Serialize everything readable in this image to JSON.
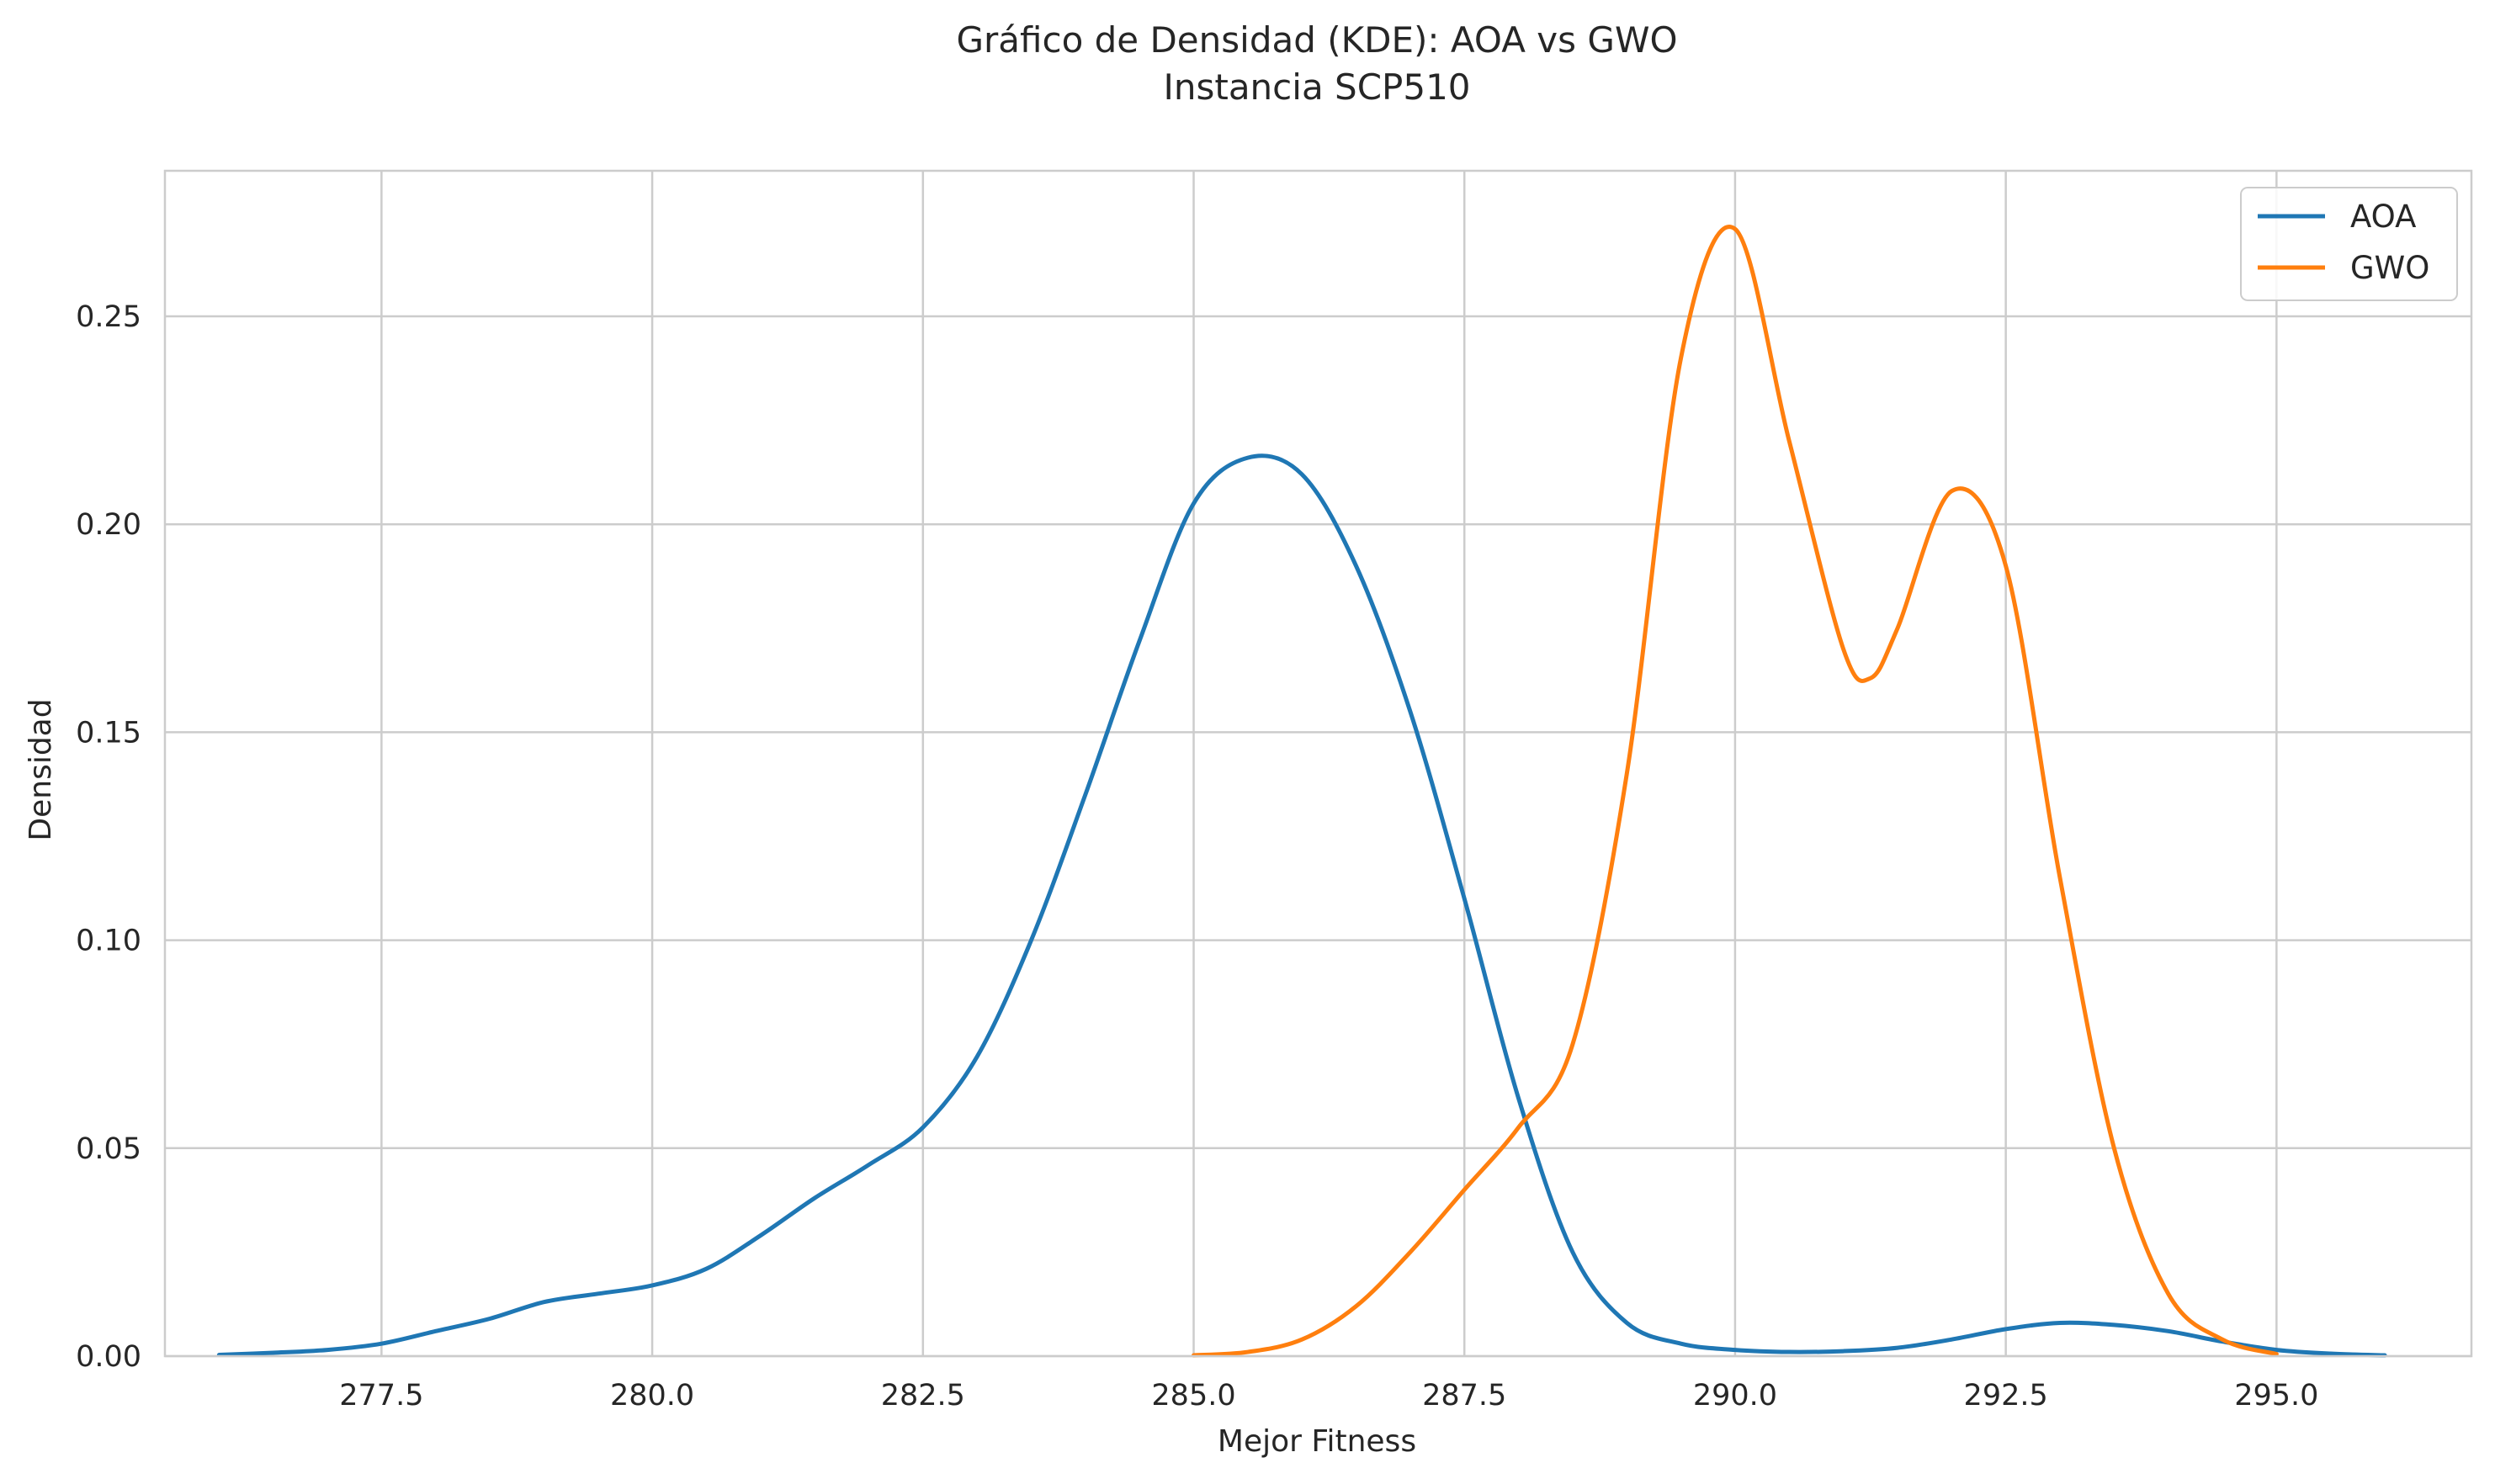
{
  "chart_data": {
    "type": "line",
    "title": "Gráfico de Densidad (KDE): AOA vs GWO",
    "subtitle": "Instancia SCP510",
    "xlabel": "Mejor Fitness",
    "ylabel": "Densidad",
    "xlim": [
      275.5,
      296.8
    ],
    "ylim": [
      0,
      0.285
    ],
    "xticks": [
      277.5,
      280.0,
      282.5,
      285.0,
      287.5,
      290.0,
      292.5,
      295.0
    ],
    "xtick_labels": [
      "277.5",
      "280.0",
      "282.5",
      "285.0",
      "287.5",
      "290.0",
      "292.5",
      "295.0"
    ],
    "yticks": [
      0.0,
      0.05,
      0.1,
      0.15,
      0.2,
      0.25
    ],
    "ytick_labels": [
      "0.00",
      "0.05",
      "0.10",
      "0.15",
      "0.20",
      "0.25"
    ],
    "grid": true,
    "legend_position": "top-right",
    "series": [
      {
        "name": "AOA",
        "color": "#1f77b4",
        "x": [
          276.0,
          276.5,
          277.0,
          277.5,
          278.0,
          278.5,
          279.0,
          279.5,
          280.0,
          280.5,
          281.0,
          281.5,
          282.0,
          282.5,
          283.0,
          283.5,
          284.0,
          284.5,
          285.0,
          285.5,
          286.0,
          286.5,
          287.0,
          287.5,
          288.0,
          288.5,
          289.0,
          289.5,
          290.0,
          290.5,
          291.0,
          291.5,
          292.0,
          292.5,
          293.0,
          293.5,
          294.0,
          294.5,
          295.0,
          295.5,
          296.0
        ],
        "y": [
          0.0003,
          0.0008,
          0.0015,
          0.003,
          0.006,
          0.009,
          0.013,
          0.015,
          0.017,
          0.021,
          0.029,
          0.038,
          0.046,
          0.055,
          0.072,
          0.1,
          0.135,
          0.172,
          0.205,
          0.216,
          0.212,
          0.19,
          0.155,
          0.11,
          0.062,
          0.025,
          0.008,
          0.003,
          0.0015,
          0.001,
          0.0012,
          0.002,
          0.004,
          0.0065,
          0.008,
          0.0075,
          0.006,
          0.0035,
          0.0015,
          0.0006,
          0.0002
        ]
      },
      {
        "name": "GWO",
        "color": "#ff7f0e",
        "x": [
          285.0,
          285.5,
          286.0,
          286.5,
          287.0,
          287.5,
          288.0,
          288.5,
          289.0,
          289.5,
          290.0,
          290.5,
          291.0,
          291.25,
          291.5,
          292.0,
          292.5,
          293.0,
          293.5,
          294.0,
          294.5,
          295.0
        ],
        "y": [
          0.0002,
          0.001,
          0.004,
          0.012,
          0.025,
          0.04,
          0.055,
          0.075,
          0.14,
          0.24,
          0.271,
          0.22,
          0.17,
          0.163,
          0.175,
          0.208,
          0.19,
          0.115,
          0.05,
          0.015,
          0.004,
          0.0005
        ]
      }
    ]
  }
}
